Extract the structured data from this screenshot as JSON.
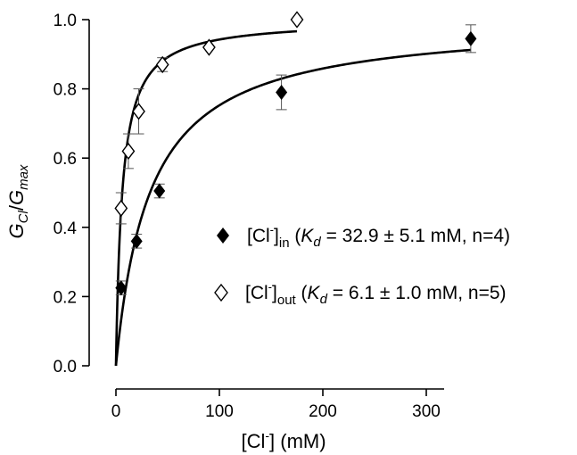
{
  "chart_data": {
    "type": "scatter",
    "xlim": [
      0,
      350
    ],
    "ylim": [
      0.0,
      1.0
    ],
    "x_ticks": [
      0,
      100,
      200,
      300
    ],
    "y_ticks": [
      0.0,
      0.2,
      0.4,
      0.6,
      0.8,
      1.0
    ],
    "x_tick_labels": [
      "0",
      "100",
      "200",
      "300"
    ],
    "y_tick_labels": [
      "0.0",
      "0.2",
      "0.4",
      "0.6",
      "0.8",
      "1.0"
    ],
    "xlabel": {
      "base": "[Cl",
      "sup": "-",
      "rest": "] (mM)"
    },
    "ylabel": {
      "g1": "G",
      "sub1": "Cl",
      "slash": "/",
      "g2": "G",
      "sub2": "max"
    },
    "grid": false,
    "legend_position": "right",
    "series": [
      {
        "marker": "filled-diamond",
        "legend": {
          "ion": "[Cl",
          "sup": "-",
          "close": "]",
          "sub": "in",
          "open": " (",
          "k": "K",
          "ksub": "d",
          "value": " = 32.9 ± 5.1 mM, n=4)"
        },
        "kd": 32.9,
        "points": [
          {
            "x": 5,
            "y": 0.225,
            "err": 0.02
          },
          {
            "x": 20,
            "y": 0.36,
            "err": 0.02
          },
          {
            "x": 42,
            "y": 0.505,
            "err": 0.02
          },
          {
            "x": 160,
            "y": 0.79,
            "err": 0.05
          },
          {
            "x": 343,
            "y": 0.945,
            "err": 0.04
          }
        ]
      },
      {
        "marker": "open-diamond",
        "legend": {
          "ion": "[Cl",
          "sup": "-",
          "close": "]",
          "sub": "out",
          "open": " (",
          "k": "K",
          "ksub": "d",
          "value": " = 6.1 ± 1.0 mM, n=5)"
        },
        "kd": 6.1,
        "points": [
          {
            "x": 5,
            "y": 0.455,
            "err": 0.045
          },
          {
            "x": 12,
            "y": 0.62,
            "err": 0.05
          },
          {
            "x": 22,
            "y": 0.735,
            "err": 0.065
          },
          {
            "x": 45,
            "y": 0.87,
            "err": 0.02
          },
          {
            "x": 90,
            "y": 0.92,
            "err": 0.0
          },
          {
            "x": 175,
            "y": 1.0,
            "err": 0.0
          }
        ]
      }
    ]
  }
}
